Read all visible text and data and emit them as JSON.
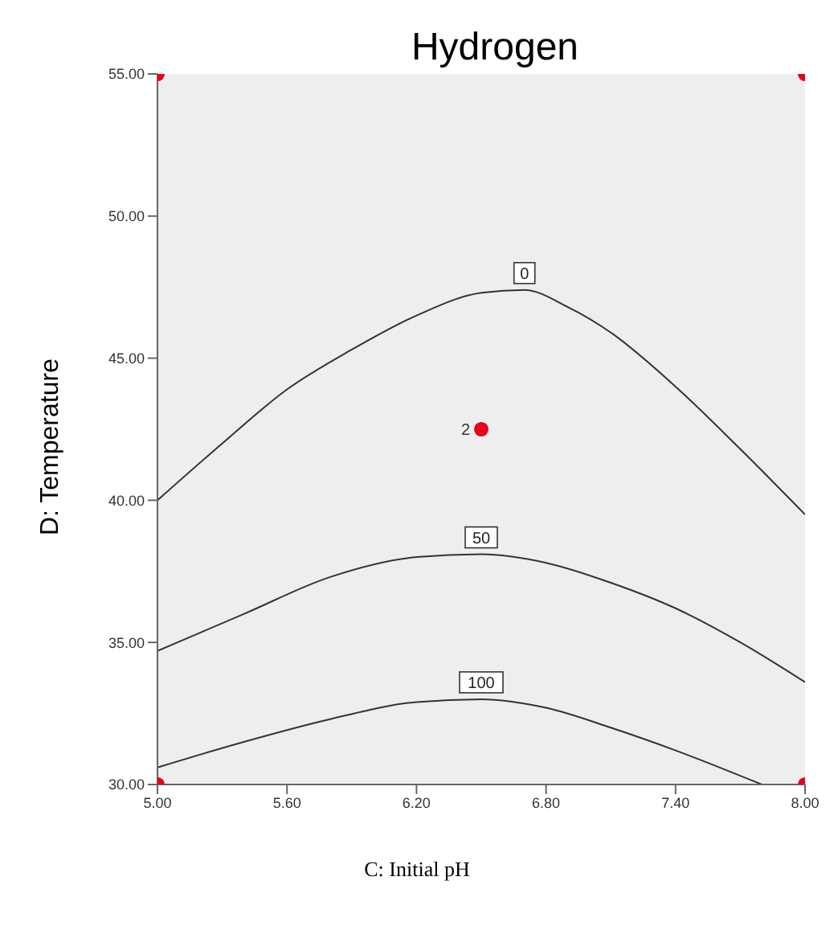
{
  "chart_data": {
    "type": "line",
    "title": "Hydrogen",
    "xlabel": "C: Initial pH",
    "ylabel": "D: Temperature",
    "xlim": [
      5,
      8
    ],
    "xticks": [
      {
        "value": 5,
        "label": "5.00"
      },
      {
        "value": 5.6,
        "label": "5.60"
      },
      {
        "value": 6.2,
        "label": "6.20"
      },
      {
        "value": 6.8,
        "label": "6.80"
      },
      {
        "value": 7.4,
        "label": "7.40"
      },
      {
        "value": 8,
        "label": "8.00"
      }
    ],
    "ylim": [
      30,
      55
    ],
    "yticks": [
      {
        "value": 30,
        "label": "30.00"
      },
      {
        "value": 35,
        "label": "35.00"
      },
      {
        "value": 40,
        "label": "40.00"
      },
      {
        "value": 45,
        "label": "45.00"
      },
      {
        "value": 50,
        "label": "50.00"
      },
      {
        "value": 55,
        "label": "55.00"
      }
    ],
    "grid": false,
    "legend": false,
    "marker": "none",
    "line_style": "solid",
    "series": [
      {
        "name": "0",
        "color": "#333333",
        "x": [
          5.0,
          5.3,
          5.6,
          5.9,
          6.2,
          6.5,
          6.7,
          6.9,
          7.1,
          7.4,
          7.7,
          8.0
        ],
        "values": [
          40.0,
          42.0,
          43.9,
          45.3,
          46.5,
          47.3,
          47.4,
          46.8,
          45.9,
          44.0,
          41.8,
          39.5
        ]
      },
      {
        "name": "50",
        "color": "#333333",
        "x": [
          5.0,
          5.4,
          5.8,
          6.2,
          6.5,
          6.8,
          7.1,
          7.4,
          7.7,
          8.0
        ],
        "values": [
          34.7,
          36.0,
          37.3,
          38.0,
          38.1,
          37.8,
          37.1,
          36.2,
          35.0,
          33.6
        ]
      },
      {
        "name": "100",
        "color": "#333333",
        "x": [
          5.0,
          5.4,
          5.8,
          6.2,
          6.5,
          6.8,
          7.1,
          7.4,
          7.8
        ],
        "values": [
          30.6,
          31.5,
          32.3,
          32.9,
          33.0,
          32.7,
          32.0,
          31.2,
          30.0
        ]
      },
      {
        "type": "scatter",
        "color": "#e8001c",
        "marker": "circle",
        "x": [
          5,
          8,
          5,
          8,
          6.5
        ],
        "values": [
          55,
          55,
          30,
          30,
          42.5
        ]
      }
    ],
    "annotations": [
      {
        "text": "2",
        "x": 6.5,
        "y": 42.5
      }
    ]
  }
}
